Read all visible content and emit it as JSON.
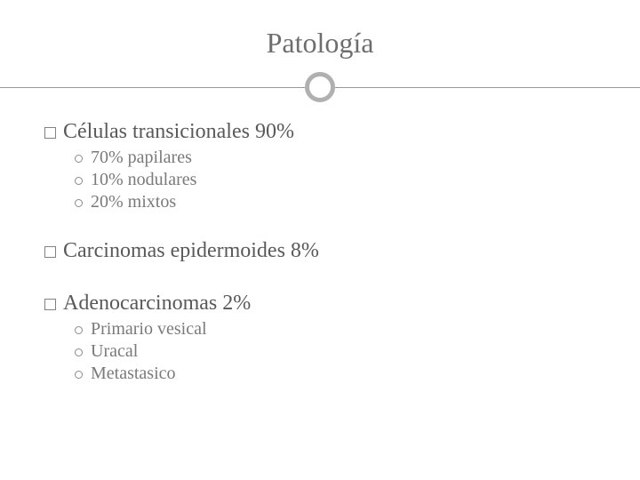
{
  "title": "Patología",
  "sections": [
    {
      "label": "Células transicionales 90%",
      "items": [
        {
          "label": "70% papilares"
        },
        {
          "label": "10% nodulares"
        },
        {
          "label": "20% mixtos"
        }
      ]
    },
    {
      "label": "Carcinomas epidermoides 8%",
      "items": []
    },
    {
      "label": "Adenocarcinomas 2%",
      "items": [
        {
          "label": "Primario vesical"
        },
        {
          "label": "Uracal"
        },
        {
          "label": "Metastasico"
        }
      ]
    }
  ],
  "colors": {
    "background": "#ffffff",
    "title": "#6e6e6e",
    "text_l1": "#595959",
    "text_l2": "#7a7a7a",
    "line": "#9a9a9a",
    "ring": "#b0b0b0"
  },
  "fontsizes": {
    "title": 32,
    "l1": 24,
    "l2": 20
  }
}
